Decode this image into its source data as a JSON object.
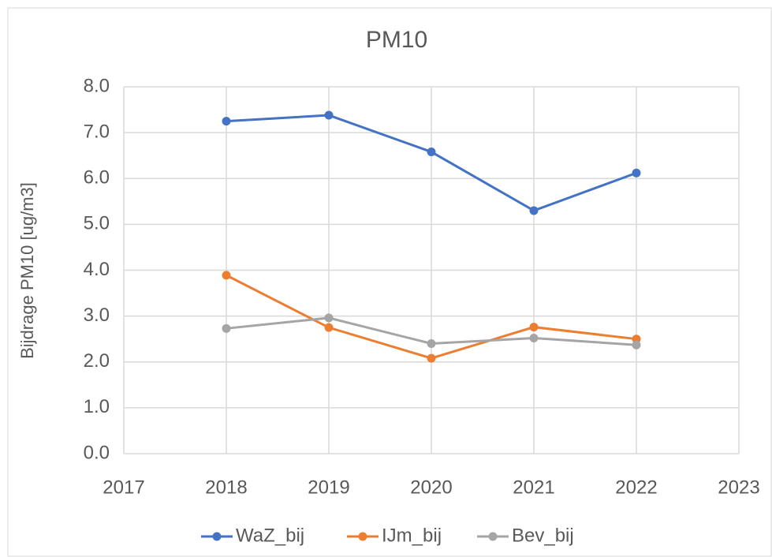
{
  "chart_data": {
    "type": "line",
    "title": "PM10",
    "y_label": "Bijdrage PM10 [ug/m3]",
    "x": [
      2018,
      2019,
      2020,
      2021,
      2022
    ],
    "series": [
      {
        "name": "WaZ_bij",
        "color": "#4472c4",
        "values": [
          7.25,
          7.38,
          6.58,
          5.3,
          6.12
        ]
      },
      {
        "name": "IJm_bij",
        "color": "#ed7d31",
        "values": [
          3.89,
          2.75,
          2.08,
          2.76,
          2.5
        ]
      },
      {
        "name": "Bev_bij",
        "color": "#a5a5a5",
        "values": [
          2.73,
          2.96,
          2.4,
          2.52,
          2.37
        ]
      }
    ],
    "xlim": [
      2017,
      2023
    ],
    "xticks": [
      2017,
      2018,
      2019,
      2020,
      2021,
      2022,
      2023
    ],
    "ylim": [
      0,
      8
    ],
    "yticks": [
      {
        "value": 0,
        "label": "0.0"
      },
      {
        "value": 1,
        "label": "1.0"
      },
      {
        "value": 2,
        "label": "2.0"
      },
      {
        "value": 3,
        "label": "3.0"
      },
      {
        "value": 4,
        "label": "4.0"
      },
      {
        "value": 5,
        "label": "5.0"
      },
      {
        "value": 6,
        "label": "6.0"
      },
      {
        "value": 7,
        "label": "7.0"
      },
      {
        "value": 8,
        "label": "8.0"
      }
    ],
    "grid": true,
    "legend": "bottom"
  }
}
